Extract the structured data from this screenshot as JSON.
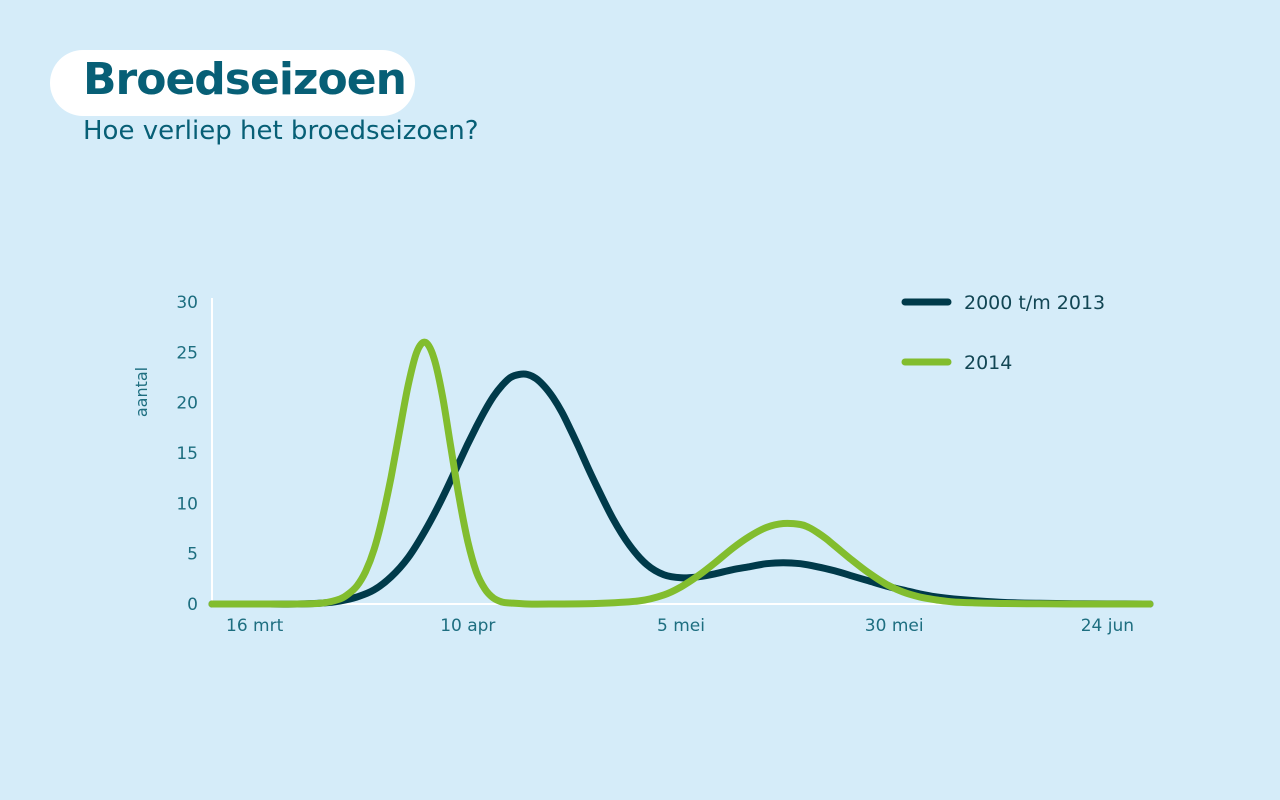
{
  "header": {
    "title": "Broedseizoen",
    "subtitle": "Hoe verliep het broedseizoen?"
  },
  "chart_data": {
    "type": "line",
    "ylabel": "aantal",
    "xlabel": "",
    "ylim": [
      0,
      30
    ],
    "yticks": [
      0,
      5,
      10,
      15,
      20,
      25,
      30
    ],
    "x_tick_labels": [
      "16 mrt",
      "10 apr",
      "5 mei",
      "30 mei",
      "24 jun"
    ],
    "x_tick_days": [
      0,
      25,
      50,
      75,
      100
    ],
    "xlim": [
      -5,
      105
    ],
    "grid": false,
    "legend_position": "top-right",
    "series": [
      {
        "name": "2000 t/m 2013",
        "color": "#003a4a",
        "x_days": [
          -5,
          0,
          5,
          8,
          10,
          12,
          14,
          16,
          18,
          20,
          22,
          24,
          25,
          26,
          27,
          28,
          29,
          30,
          31,
          32,
          33,
          34,
          35,
          36,
          37,
          38,
          39,
          40,
          42,
          44,
          46,
          48,
          50,
          52,
          54,
          56,
          58,
          60,
          62,
          64,
          66,
          68,
          70,
          72,
          74,
          76,
          78,
          80,
          82,
          85,
          88,
          92,
          96,
          100,
          105
        ],
        "values": [
          0,
          0,
          0,
          0.1,
          0.3,
          0.7,
          1.4,
          2.7,
          4.6,
          7.3,
          10.5,
          14.1,
          15.9,
          17.6,
          19.2,
          20.6,
          21.7,
          22.5,
          22.8,
          22.8,
          22.4,
          21.6,
          20.5,
          19.1,
          17.4,
          15.6,
          13.7,
          11.9,
          8.5,
          5.8,
          3.9,
          2.9,
          2.6,
          2.7,
          3.0,
          3.4,
          3.7,
          4.0,
          4.1,
          4.0,
          3.7,
          3.3,
          2.8,
          2.3,
          1.8,
          1.4,
          1.0,
          0.7,
          0.5,
          0.3,
          0.15,
          0.07,
          0.03,
          0.01,
          0
        ]
      },
      {
        "name": "2014",
        "color": "#82bd2e",
        "x_days": [
          -5,
          0,
          5,
          8,
          10,
          11,
          12,
          13,
          14,
          15,
          16,
          17,
          18,
          19,
          20,
          21,
          22,
          23,
          24,
          25,
          26,
          27,
          28,
          29,
          30,
          32,
          35,
          40,
          45,
          48,
          50,
          52,
          54,
          56,
          58,
          60,
          62,
          64,
          65,
          66,
          67,
          68,
          70,
          72,
          74,
          76,
          78,
          80,
          82,
          85,
          88,
          92,
          96,
          100,
          105
        ],
        "values": [
          0,
          0,
          0,
          0.1,
          0.5,
          1.0,
          1.8,
          3.2,
          5.4,
          8.6,
          12.6,
          17.2,
          21.7,
          25.0,
          26.0,
          24.5,
          20.8,
          15.6,
          10.5,
          6.2,
          3.2,
          1.5,
          0.6,
          0.2,
          0.1,
          0,
          0,
          0.05,
          0.3,
          0.9,
          1.7,
          2.8,
          4.1,
          5.5,
          6.7,
          7.6,
          8.0,
          7.9,
          7.6,
          7.1,
          6.5,
          5.8,
          4.4,
          3.1,
          2.0,
          1.2,
          0.7,
          0.4,
          0.2,
          0.1,
          0.05,
          0.02,
          0,
          0,
          0
        ]
      }
    ]
  }
}
